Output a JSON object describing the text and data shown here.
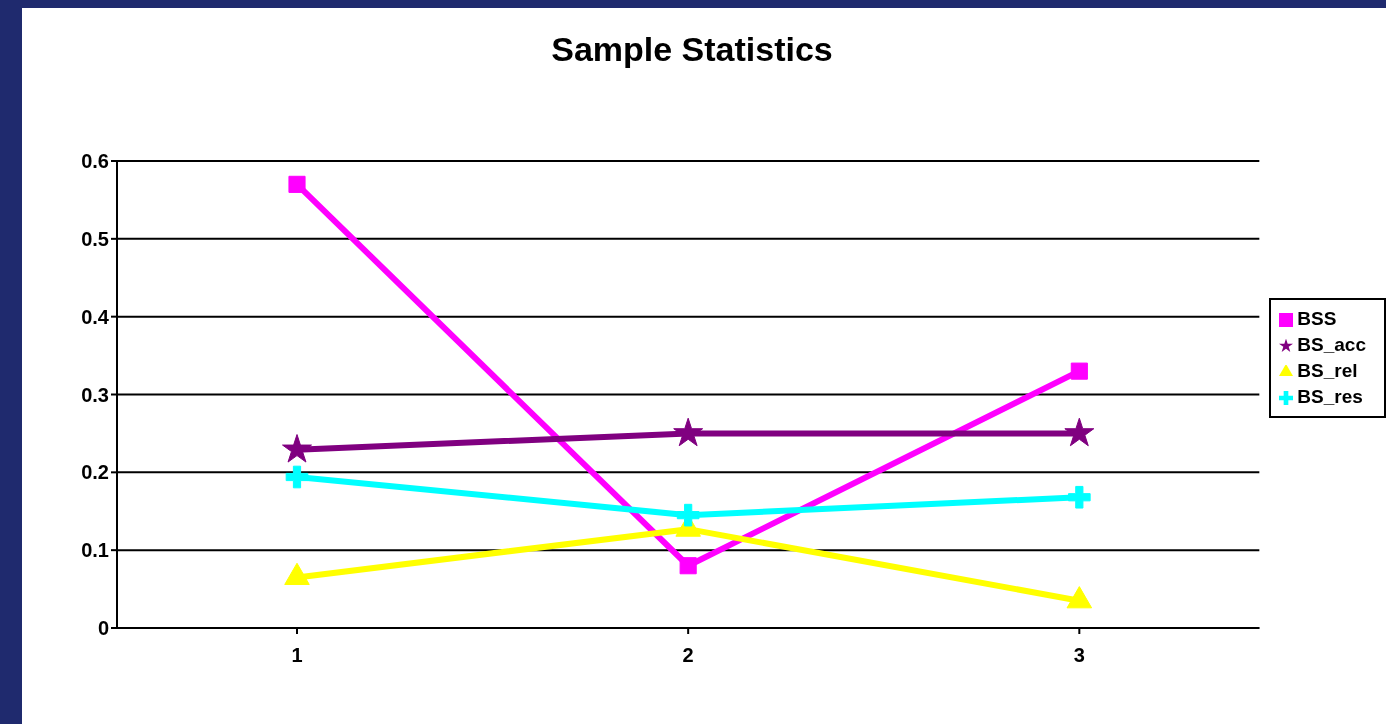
{
  "chart_data": {
    "type": "line",
    "title": "Sample Statistics",
    "categories": [
      "1",
      "2",
      "3"
    ],
    "series": [
      {
        "name": "BSS",
        "color": "#ff00ff",
        "marker": "square",
        "values": [
          0.57,
          0.08,
          0.33
        ]
      },
      {
        "name": "BS_rel",
        "color": "#ffff00",
        "marker": "triangle",
        "values": [
          0.065,
          0.127,
          0.035
        ]
      },
      {
        "name": "BS_res",
        "color": "#00ffff",
        "marker": "cross",
        "values": [
          0.194,
          0.145,
          0.168
        ]
      },
      {
        "name": "BS_acc",
        "color": "#800080",
        "marker": "star",
        "values": [
          0.229,
          0.25,
          0.25
        ]
      }
    ],
    "ylim": [
      0,
      0.6
    ],
    "yticks": [
      0,
      0.1,
      0.2,
      0.3,
      0.4,
      0.5,
      0.6
    ],
    "grid": "y",
    "legend": "right",
    "line_style": "solid"
  }
}
